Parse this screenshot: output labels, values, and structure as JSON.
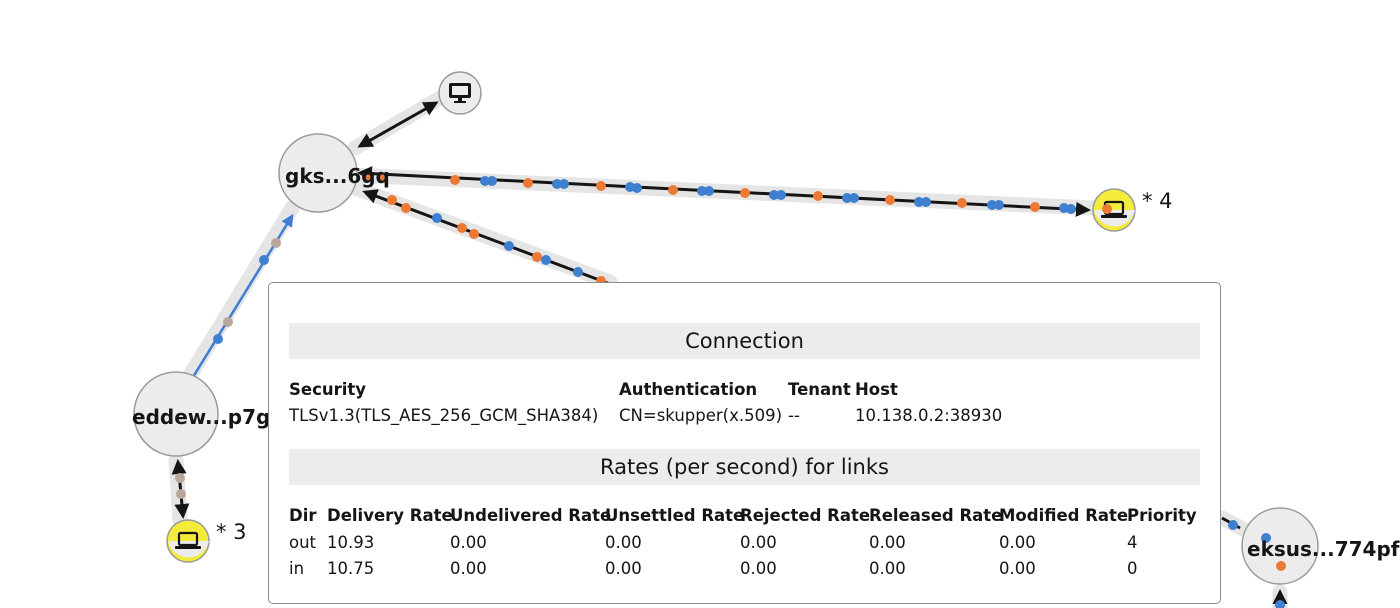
{
  "colors": {
    "link_shadow": "#e5e5e5",
    "arrow": "#151515",
    "blue_link": "#3e7dd1",
    "dot_orange": "#ec7a35",
    "dot_blue": "#3f7fcf",
    "node_fill": "#ececec",
    "node_stroke": "#9a9a9a",
    "client_yellow": "#f4ec3a"
  },
  "nodes": {
    "gke_label": "gks...6gq",
    "edge_label": "eddew...p7g",
    "eks_label": "eksus...774pf",
    "client_right_count": "* 4",
    "client_left_count": "* 3",
    "monitor_icon": "monitor-icon",
    "laptop_icon": "laptop-icon"
  },
  "popup": {
    "connection_title": "Connection",
    "connection_headers": {
      "security": "Security",
      "authentication": "Authentication",
      "tenant": "Tenant",
      "host": "Host"
    },
    "connection_values": {
      "security": "TLSv1.3(TLS_AES_256_GCM_SHA384)",
      "authentication": "CN=skupper(x.509)",
      "tenant": "--",
      "host": "10.138.0.2:38930"
    },
    "rates_title": "Rates (per second) for links",
    "rates_headers": [
      "Dir",
      "Delivery Rate",
      "Undelivered Rate",
      "Unsettled Rate",
      "Rejected Rate",
      "Released Rate",
      "Modified Rate",
      "Priority"
    ],
    "rates_rows": [
      [
        "out",
        "10.93",
        "0.00",
        "0.00",
        "0.00",
        "0.00",
        "0.00",
        "4"
      ],
      [
        "in",
        "10.75",
        "0.00",
        "0.00",
        "0.00",
        "0.00",
        "0.00",
        "0"
      ]
    ]
  }
}
